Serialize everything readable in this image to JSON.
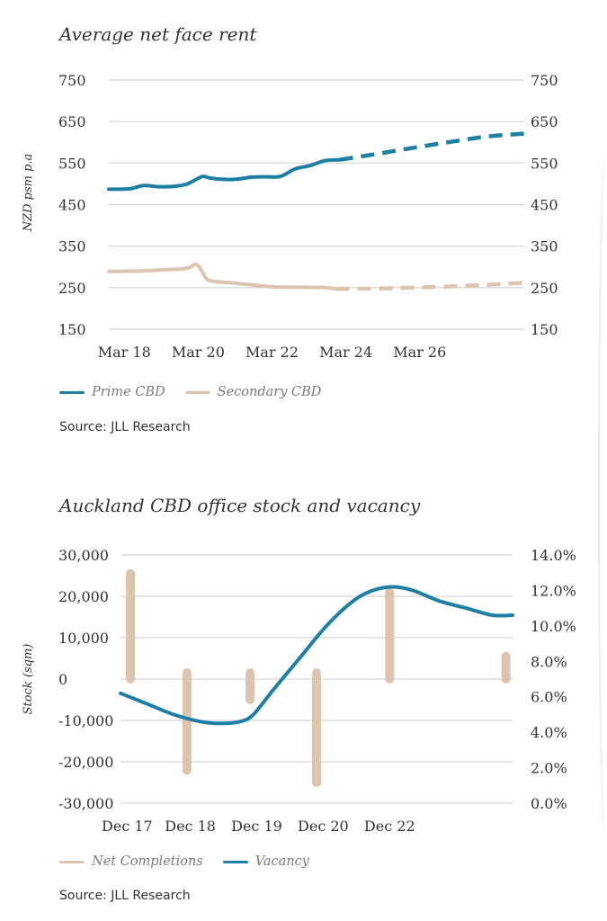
{
  "chart_data": [
    {
      "type": "line",
      "title": "Average net face rent",
      "ylabel": "NZD psm p.a",
      "xlabel": "",
      "ylim": [
        150,
        750
      ],
      "yticks": [
        750,
        650,
        550,
        450,
        350,
        250,
        150
      ],
      "xlim": [
        2017.75,
        2029.0
      ],
      "xtick_positions": [
        2018.17,
        2020.17,
        2022.17,
        2024.17,
        2026.17
      ],
      "xtick_labels": [
        "Mar 18",
        "Mar 20",
        "Mar 22",
        "Mar 24",
        "Mar 26"
      ],
      "grid": true,
      "legend": "bottom-left",
      "series": [
        {
          "name": "Prime CBD",
          "color": "#1d7fa3",
          "actual": [
            [
              2017.75,
              487
            ],
            [
              2018.3,
              488
            ],
            [
              2018.7,
              496
            ],
            [
              2019.1,
              493
            ],
            [
              2019.5,
              494
            ],
            [
              2019.85,
              499
            ],
            [
              2020.1,
              510
            ],
            [
              2020.3,
              518
            ],
            [
              2020.5,
              514
            ],
            [
              2020.8,
              511
            ],
            [
              2021.2,
              511
            ],
            [
              2021.6,
              516
            ],
            [
              2022.0,
              517
            ],
            [
              2022.4,
              518
            ],
            [
              2022.8,
              536
            ],
            [
              2023.2,
              544
            ],
            [
              2023.6,
              556
            ],
            [
              2024.0,
              558
            ]
          ],
          "forecast": [
            [
              2024.0,
              558
            ],
            [
              2025.0,
              572
            ],
            [
              2026.0,
              587
            ],
            [
              2027.0,
              601
            ],
            [
              2028.0,
              614
            ],
            [
              2029.0,
              621
            ]
          ]
        },
        {
          "name": "Secondary CBD",
          "color": "#dcc4ae",
          "actual": [
            [
              2017.75,
              289
            ],
            [
              2018.5,
              290
            ],
            [
              2019.2,
              293
            ],
            [
              2019.7,
              295
            ],
            [
              2019.95,
              299
            ],
            [
              2020.08,
              306
            ],
            [
              2020.2,
              300
            ],
            [
              2020.4,
              271
            ],
            [
              2020.6,
              265
            ],
            [
              2021.0,
              262
            ],
            [
              2021.6,
              257
            ],
            [
              2022.2,
              252
            ],
            [
              2023.0,
              251
            ],
            [
              2023.6,
              250
            ],
            [
              2023.9,
              247
            ]
          ],
          "forecast": [
            [
              2023.9,
              247
            ],
            [
              2025.0,
              248
            ],
            [
              2026.0,
              250
            ],
            [
              2027.0,
              253
            ],
            [
              2028.0,
              257
            ],
            [
              2029.0,
              262
            ]
          ]
        }
      ],
      "source": "Source: JLL Research"
    },
    {
      "type": "bar+line",
      "title": "Auckland CBD office stock and vacancy",
      "ylabel": "Stock (sqm)",
      "ylim": [
        -30000,
        30000
      ],
      "yticks": [
        30000,
        20000,
        10000,
        0,
        -10000,
        -20000,
        -30000
      ],
      "ytick_labels": [
        "30,000",
        "20,000",
        "10,000",
        "0",
        "-10,000",
        "-20,000",
        "-30,000"
      ],
      "y2lim": [
        0.0,
        14.0
      ],
      "y2ticks": [
        14,
        12,
        10,
        8,
        6,
        4,
        2,
        0
      ],
      "y2tick_labels": [
        "14.0%",
        "12.0%",
        "10.0%",
        "8.0%",
        "6.0%",
        "4.0%",
        "2.0%",
        "0.0%"
      ],
      "xlim": [
        2017.0,
        2022.9
      ],
      "xtick_positions": [
        2017.1,
        2018.05,
        2019.05,
        2020.05,
        2021.05
      ],
      "xtick_labels": [
        "Dec 17",
        "Dec 18",
        "Dec 19",
        "Dec 20",
        "Dec 22"
      ],
      "grid": true,
      "legend": "bottom-left",
      "bars": {
        "name": "Net Completions",
        "color": "#dcc4ae",
        "items": [
          {
            "x": 2017.15,
            "low": 0,
            "high": 25500
          },
          {
            "x": 2018.0,
            "low": -22000,
            "high": 1500
          },
          {
            "x": 2018.95,
            "low": -5000,
            "high": 1500
          },
          {
            "x": 2019.95,
            "low": -25000,
            "high": 1500
          },
          {
            "x": 2021.05,
            "low": 0,
            "high": 21000
          },
          {
            "x": 2022.8,
            "low": 0,
            "high": 5500
          }
        ]
      },
      "line": {
        "name": "Vacancy",
        "color": "#1d7fa3",
        "points": [
          [
            2017.0,
            6.2
          ],
          [
            2017.4,
            5.6
          ],
          [
            2017.8,
            5.0
          ],
          [
            2018.2,
            4.6
          ],
          [
            2018.5,
            4.5
          ],
          [
            2018.8,
            4.6
          ],
          [
            2019.0,
            5.0
          ],
          [
            2019.3,
            6.4
          ],
          [
            2019.7,
            8.2
          ],
          [
            2020.1,
            10.0
          ],
          [
            2020.5,
            11.4
          ],
          [
            2020.8,
            12.0
          ],
          [
            2021.1,
            12.2
          ],
          [
            2021.4,
            12.0
          ],
          [
            2021.8,
            11.4
          ],
          [
            2022.2,
            11.0
          ],
          [
            2022.6,
            10.6
          ],
          [
            2022.9,
            10.6
          ]
        ]
      },
      "source": "Source: JLL Research"
    }
  ]
}
